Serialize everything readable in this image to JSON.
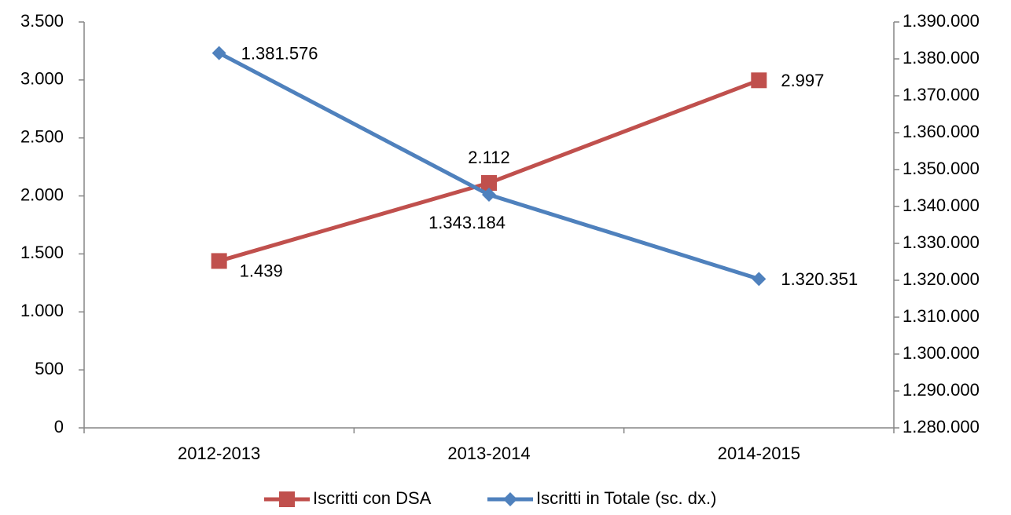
{
  "chart_data": {
    "type": "line",
    "categories": [
      "2012-2013",
      "2013-2014",
      "2014-2015"
    ],
    "series": [
      {
        "name": "Iscritti con DSA",
        "color": "#c0504d",
        "values": [
          1439,
          2112,
          2997
        ],
        "value_labels": [
          "1.439",
          "2.112",
          "2.997"
        ],
        "marker": "square"
      },
      {
        "name": "Iscritti in Totale  (sc. dx.)",
        "color": "#4f81bd",
        "axis": "y2",
        "values": [
          1381576,
          1343184,
          1320351
        ],
        "value_labels": [
          "1.381.576",
          "1.343.184",
          "1.320.351"
        ],
        "marker": "diamond"
      }
    ],
    "ylim": [
      0,
      3500
    ],
    "yticks": [
      0,
      500,
      {
        "value": 1000,
        "label": "1.000"
      },
      {
        "value": 1500,
        "label": "1.500"
      },
      {
        "value": 2000,
        "label": "2.000"
      },
      {
        "value": 2500,
        "label": "2.500"
      },
      {
        "value": 3000,
        "label": "3.000"
      },
      {
        "value": 3500,
        "label": "3.500"
      }
    ],
    "y2lim": [
      1280000,
      1390000
    ],
    "y2ticks": [
      {
        "value": 1280000,
        "label": "1.280.000"
      },
      {
        "value": 1290000,
        "label": "1.290.000"
      },
      {
        "value": 1300000,
        "label": "1.300.000"
      },
      {
        "value": 1310000,
        "label": "1.310.000"
      },
      {
        "value": 1320000,
        "label": "1.320.000"
      },
      {
        "value": 1330000,
        "label": "1.330.000"
      },
      {
        "value": 1340000,
        "label": "1.340.000"
      },
      {
        "value": 1350000,
        "label": "1.350.000"
      },
      {
        "value": 1360000,
        "label": "1.360.000"
      },
      {
        "value": 1370000,
        "label": "1.370.000"
      },
      {
        "value": 1380000,
        "label": "1.380.000"
      },
      {
        "value": 1390000,
        "label": "1.390.000"
      }
    ],
    "legend": "bottom"
  }
}
